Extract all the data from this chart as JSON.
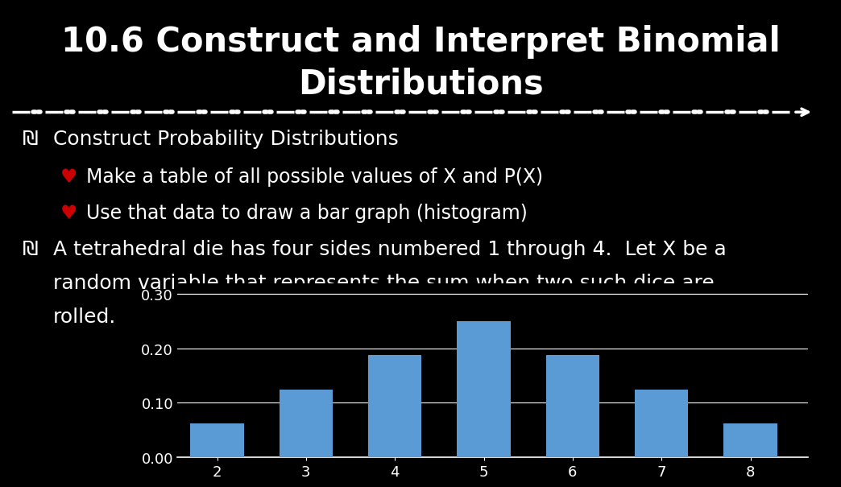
{
  "title_line1": "10.6 Construct and Interpret Binomial",
  "title_line2": "Distributions",
  "background_color": "#000000",
  "text_color": "#ffffff",
  "bullet_symbol": "₪",
  "heart_symbol": "♥",
  "heart_color": "#cc0000",
  "bullet1": "Construct Probability Distributions",
  "sub1": "Make a table of all possible values of X and P(X)",
  "sub2": "Use that data to draw a bar graph (histogram)",
  "bullet2_line1": "A tetrahedral die has four sides numbered 1 through 4.  Let X be a",
  "bullet2_line2": "random variable that represents the sum when two such dice are",
  "bullet2_line3": "rolled.",
  "bar_x": [
    2,
    3,
    4,
    5,
    6,
    7,
    8
  ],
  "bar_heights": [
    0.0625,
    0.125,
    0.1875,
    0.25,
    0.1875,
    0.125,
    0.0625
  ],
  "bar_color": "#5b9bd5",
  "chart_bg": "#000000",
  "chart_text_color": "#ffffff",
  "yticks": [
    0.0,
    0.1,
    0.2,
    0.3
  ],
  "ylim": [
    0,
    0.32
  ],
  "title_fontsize": 30,
  "body_fontsize": 18,
  "sub_fontsize": 17,
  "chart_fontsize": 13
}
